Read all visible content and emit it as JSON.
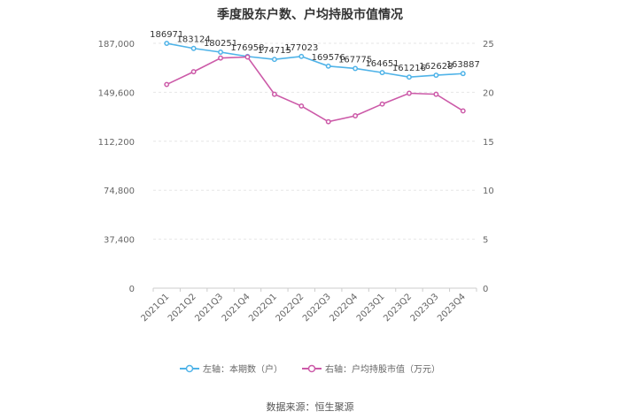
{
  "chart_data": {
    "type": "line",
    "title": "季度股东户数、户均持股市值情况",
    "categories": [
      "2021Q1",
      "2021Q2",
      "2021Q3",
      "2021Q4",
      "2022Q1",
      "2022Q2",
      "2022Q3",
      "2022Q4",
      "2023Q1",
      "2023Q2",
      "2023Q3",
      "2023Q4"
    ],
    "series": [
      {
        "name": "左轴：本期数（户）",
        "axis": "left",
        "color": "#4fb3e8",
        "values": [
          186971,
          183124,
          180251,
          176958,
          174715,
          177023,
          169576,
          167775,
          164651,
          161216,
          162628,
          163887
        ],
        "labels": [
          "186971",
          "183124",
          "180251",
          "176958",
          "174715",
          "177023",
          "169576",
          "167775",
          "164651",
          "161216",
          "162628",
          "163887"
        ]
      },
      {
        "name": "右轴：户均持股市值（万元）",
        "axis": "right",
        "color": "#cc5aa8",
        "values": [
          20.8,
          22.1,
          23.5,
          23.6,
          19.8,
          18.6,
          17.0,
          17.6,
          18.8,
          19.9,
          19.8,
          18.1
        ]
      }
    ],
    "y_left": {
      "ylim": [
        0,
        187000
      ],
      "ticks": [
        0,
        37400,
        74800,
        112200,
        149600,
        187000
      ],
      "tick_labels": [
        "0",
        "37,400",
        "74,800",
        "112,200",
        "149,600",
        "187,000"
      ]
    },
    "y_right": {
      "ylim": [
        0,
        25
      ],
      "ticks": [
        0,
        5,
        10,
        15,
        20,
        25
      ],
      "tick_labels": [
        "0",
        "5",
        "10",
        "15",
        "20",
        "25"
      ]
    },
    "grid": true,
    "legend_position": "bottom"
  },
  "source": "数据来源：恒生聚源"
}
